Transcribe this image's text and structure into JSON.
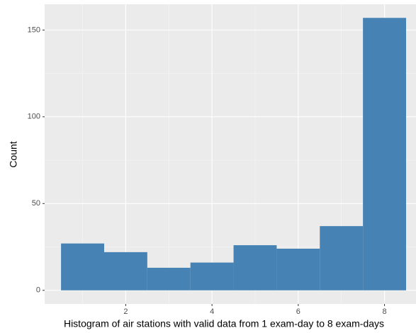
{
  "chart_data": {
    "type": "histogram",
    "xlabel": "Histogram of air stations with valid data from 1 exam-day to 8 exam-days",
    "ylabel": "Count",
    "bins": [
      0.5,
      1.5,
      2.5,
      3.5,
      4.5,
      5.5,
      6.5,
      7.5,
      8.5
    ],
    "values": [
      27,
      22,
      13,
      16,
      26,
      24,
      37,
      157
    ],
    "color": "#4682b4",
    "xlim": [
      0.12,
      8.73
    ],
    "xticks": [
      2,
      4,
      6,
      8
    ],
    "ylim": [
      -7.85,
      164.85
    ],
    "yticks": [
      0,
      50,
      100,
      150
    ],
    "grid": true,
    "minor_grid": true
  }
}
